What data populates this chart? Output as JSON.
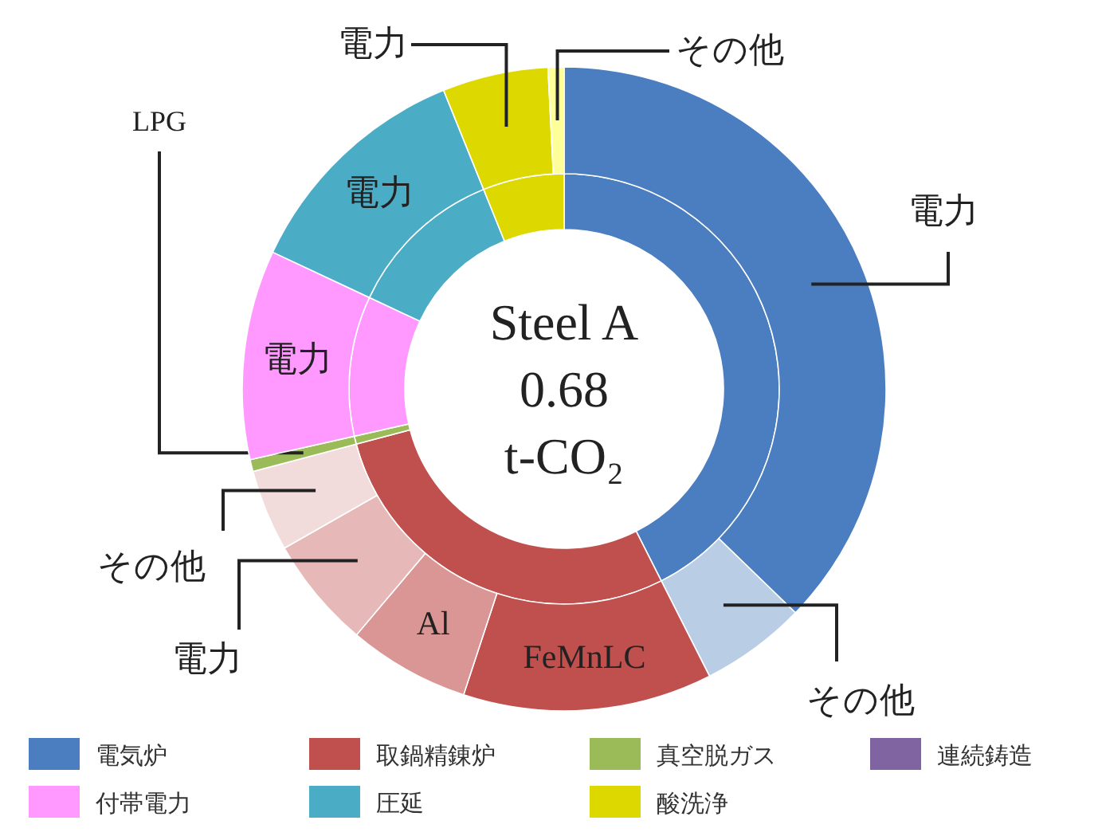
{
  "chart_data": [
    {
      "type": "donut",
      "annotations": [
        "Steel A",
        "0.68",
        "t-CO₂"
      ],
      "legend": "bottom",
      "categories": [
        "電気炉",
        "取鍋精錬炉",
        "真空脱ガス",
        "連続鋳造",
        "付帯電力",
        "圧延",
        "酸洗浄"
      ],
      "values": [
        42.5,
        28.3,
        0.6,
        null,
        10.5,
        11.9,
        6.1
      ],
      "colors": [
        "#4a7ec0",
        "#c0504d",
        "#9bbb59",
        "#8064a2",
        "#ff99ff",
        "#4bacc6",
        "#dcd800"
      ]
    },
    {
      "type": "donut",
      "legend": false,
      "categories": [
        "電力",
        "その他",
        "FeMnLC",
        "Al",
        "電力",
        "その他",
        "LPG",
        "電力",
        "電力",
        "電力",
        "その他"
      ],
      "values": [
        37.2,
        5.3,
        12.5,
        6.1,
        5.6,
        4.1,
        0.6,
        10.5,
        11.9,
        5.3,
        0.8
      ],
      "colors": [
        "#4a7ec0",
        "#b9cde5",
        "#c0504d",
        "#d99694",
        "#e6b9b8",
        "#f2dcdb",
        "#9bbb59",
        "#ff99ff",
        "#4bacc6",
        "#dcd800",
        "#ffff99"
      ]
    }
  ]
}
